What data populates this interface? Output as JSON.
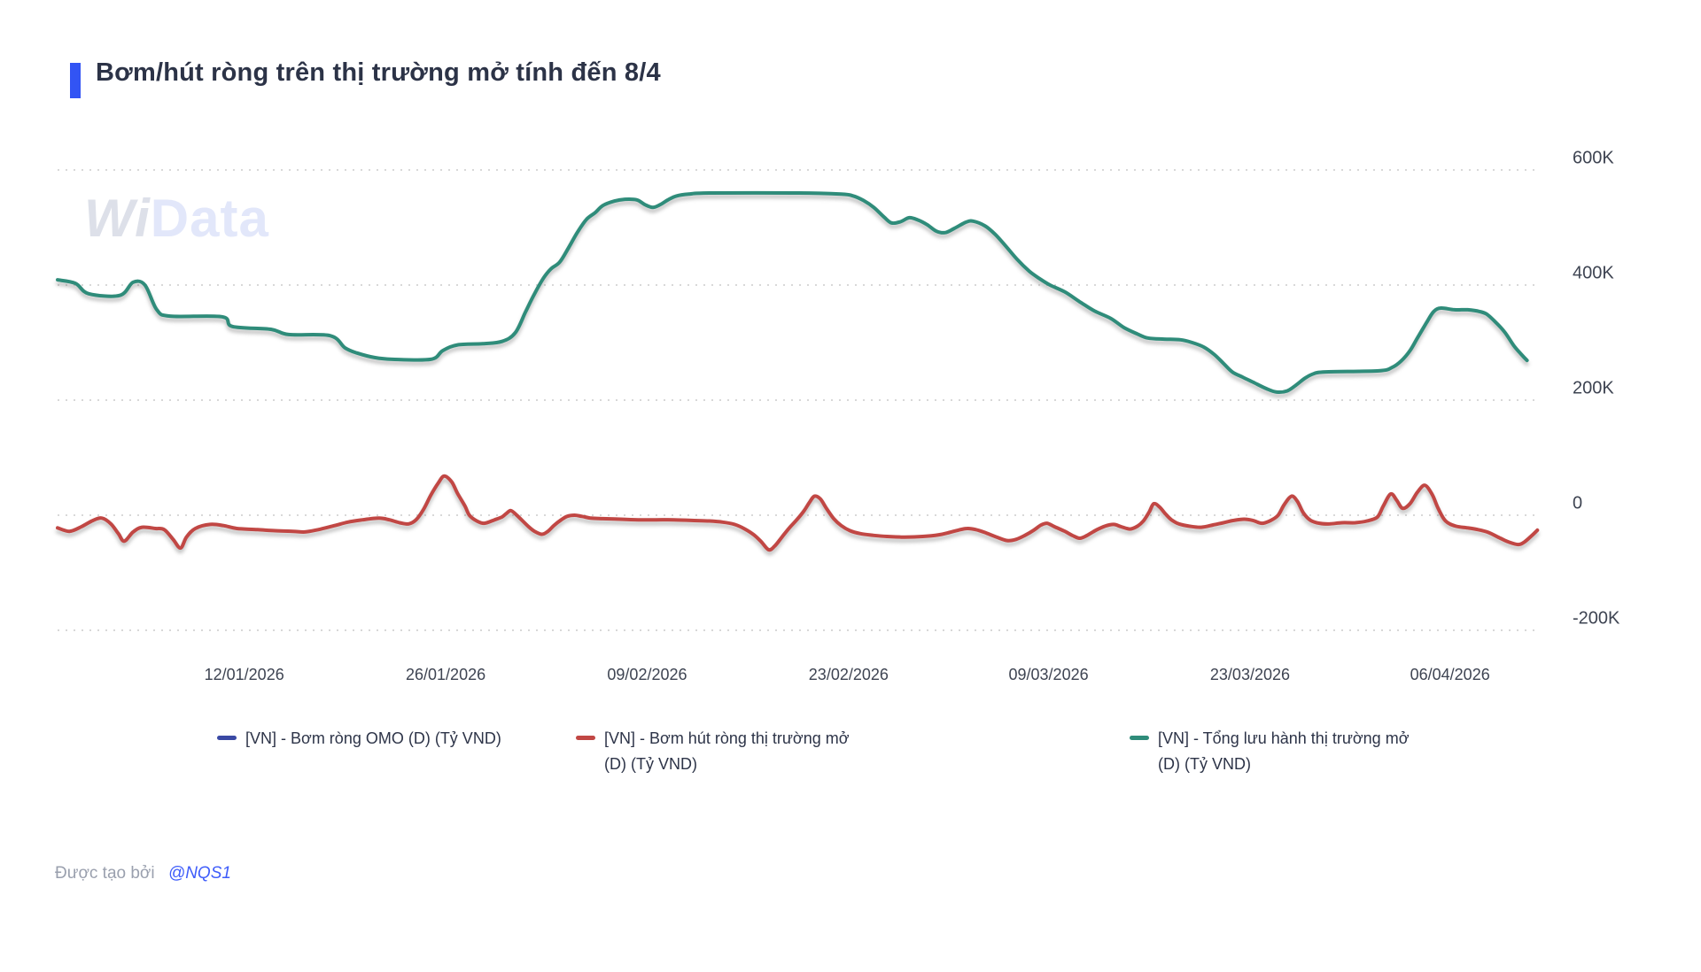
{
  "header": {
    "title": "Bơm/hút ròng trên thị trường mở tính đến 8/4",
    "accent_color": "#3254f4"
  },
  "watermark": {
    "part1": "Wi",
    "part2": "Data"
  },
  "footer": {
    "created_by": "Được tạo bởi",
    "author": "@NQS1",
    "link_color": "#3e5cfa"
  },
  "chart_data": {
    "type": "line",
    "title": "Bơm/hút ròng trên thị trường mở tính đến 8/4",
    "xlabel": "",
    "ylabel": "",
    "unit_hint": "K = nghìn (Tỷ VND)",
    "ylim": [
      -200,
      600
    ],
    "grid": {
      "color": "#d8d8d8",
      "style": "dotted",
      "horizontal_only": true
    },
    "legend_position": "bottom",
    "y_axis": {
      "ticks": [
        {
          "label": "600K",
          "value": 600
        },
        {
          "label": "400K",
          "value": 400
        },
        {
          "label": "200K",
          "value": 200
        },
        {
          "label": "0",
          "value": 0
        },
        {
          "label": "-200K",
          "value": -200
        }
      ]
    },
    "x_axis": {
      "ticks": [
        {
          "label": "12/01/2026",
          "fx": 0.126
        },
        {
          "label": "26/01/2026",
          "fx": 0.262
        },
        {
          "label": "09/02/2026",
          "fx": 0.398
        },
        {
          "label": "23/02/2026",
          "fx": 0.534
        },
        {
          "label": "09/03/2026",
          "fx": 0.669
        },
        {
          "label": "23/03/2026",
          "fx": 0.805
        },
        {
          "label": "06/04/2026",
          "fx": 0.94
        }
      ]
    },
    "series": [
      {
        "name": "[VN] - Bơm ròng OMO (D) (Tỷ VND)",
        "color": "#3a49a4",
        "visible": false,
        "points": []
      },
      {
        "name": "[VN] - Bơm hút ròng thị trường mở (D) (Tỷ VND)",
        "color": "#c14744",
        "visible": true,
        "points": [
          [
            0,
            -22
          ],
          [
            0.008,
            -28
          ],
          [
            0.016,
            -20
          ],
          [
            0.024,
            -9
          ],
          [
            0.03,
            -5
          ],
          [
            0.036,
            -15
          ],
          [
            0.041,
            -32
          ],
          [
            0.045,
            -45
          ],
          [
            0.051,
            -29
          ],
          [
            0.057,
            -21
          ],
          [
            0.066,
            -23
          ],
          [
            0.072,
            -25
          ],
          [
            0.078,
            -42
          ],
          [
            0.083,
            -57
          ],
          [
            0.087,
            -38
          ],
          [
            0.093,
            -23
          ],
          [
            0.103,
            -16
          ],
          [
            0.112,
            -18
          ],
          [
            0.121,
            -23
          ],
          [
            0.135,
            -25
          ],
          [
            0.147,
            -27
          ],
          [
            0.159,
            -28
          ],
          [
            0.167,
            -29
          ],
          [
            0.176,
            -25
          ],
          [
            0.187,
            -18
          ],
          [
            0.196,
            -12
          ],
          [
            0.206,
            -8
          ],
          [
            0.217,
            -5
          ],
          [
            0.224,
            -8
          ],
          [
            0.231,
            -13
          ],
          [
            0.237,
            -15
          ],
          [
            0.242,
            -8
          ],
          [
            0.247,
            10
          ],
          [
            0.252,
            35
          ],
          [
            0.257,
            56
          ],
          [
            0.261,
            68
          ],
          [
            0.266,
            58
          ],
          [
            0.27,
            38
          ],
          [
            0.275,
            16
          ],
          [
            0.278,
            0
          ],
          [
            0.283,
            -10
          ],
          [
            0.288,
            -14
          ],
          [
            0.295,
            -8
          ],
          [
            0.3,
            -3
          ],
          [
            0.303,
            3
          ],
          [
            0.306,
            8
          ],
          [
            0.31,
            0
          ],
          [
            0.314,
            -10
          ],
          [
            0.318,
            -20
          ],
          [
            0.322,
            -28
          ],
          [
            0.327,
            -33
          ],
          [
            0.331,
            -28
          ],
          [
            0.335,
            -18
          ],
          [
            0.34,
            -8
          ],
          [
            0.344,
            -2
          ],
          [
            0.349,
            0
          ],
          [
            0.354,
            -2
          ],
          [
            0.36,
            -5
          ],
          [
            0.368,
            -6
          ],
          [
            0.38,
            -7
          ],
          [
            0.392,
            -8
          ],
          [
            0.404,
            -8
          ],
          [
            0.416,
            -8
          ],
          [
            0.428,
            -9
          ],
          [
            0.44,
            -10
          ],
          [
            0.449,
            -12
          ],
          [
            0.457,
            -16
          ],
          [
            0.464,
            -24
          ],
          [
            0.47,
            -34
          ],
          [
            0.475,
            -46
          ],
          [
            0.48,
            -60
          ],
          [
            0.484,
            -54
          ],
          [
            0.489,
            -38
          ],
          [
            0.494,
            -22
          ],
          [
            0.499,
            -8
          ],
          [
            0.504,
            8
          ],
          [
            0.508,
            24
          ],
          [
            0.511,
            33
          ],
          [
            0.515,
            28
          ],
          [
            0.519,
            12
          ],
          [
            0.524,
            -6
          ],
          [
            0.529,
            -18
          ],
          [
            0.535,
            -27
          ],
          [
            0.542,
            -32
          ],
          [
            0.551,
            -35
          ],
          [
            0.56,
            -37
          ],
          [
            0.572,
            -38
          ],
          [
            0.584,
            -37
          ],
          [
            0.595,
            -34
          ],
          [
            0.602,
            -30
          ],
          [
            0.608,
            -26
          ],
          [
            0.614,
            -23
          ],
          [
            0.62,
            -25
          ],
          [
            0.627,
            -31
          ],
          [
            0.634,
            -38
          ],
          [
            0.641,
            -44
          ],
          [
            0.647,
            -42
          ],
          [
            0.653,
            -35
          ],
          [
            0.659,
            -26
          ],
          [
            0.664,
            -17
          ],
          [
            0.668,
            -14
          ],
          [
            0.673,
            -20
          ],
          [
            0.68,
            -28
          ],
          [
            0.685,
            -35
          ],
          [
            0.69,
            -40
          ],
          [
            0.695,
            -35
          ],
          [
            0.701,
            -26
          ],
          [
            0.707,
            -19
          ],
          [
            0.713,
            -16
          ],
          [
            0.718,
            -20
          ],
          [
            0.724,
            -24
          ],
          [
            0.729,
            -19
          ],
          [
            0.733,
            -10
          ],
          [
            0.737,
            6
          ],
          [
            0.74,
            20
          ],
          [
            0.744,
            14
          ],
          [
            0.748,
            2
          ],
          [
            0.752,
            -8
          ],
          [
            0.757,
            -15
          ],
          [
            0.764,
            -19
          ],
          [
            0.772,
            -21
          ],
          [
            0.78,
            -17
          ],
          [
            0.787,
            -13
          ],
          [
            0.794,
            -9
          ],
          [
            0.801,
            -7
          ],
          [
            0.807,
            -9
          ],
          [
            0.813,
            -14
          ],
          [
            0.819,
            -9
          ],
          [
            0.824,
            0
          ],
          [
            0.828,
            18
          ],
          [
            0.833,
            33
          ],
          [
            0.837,
            24
          ],
          [
            0.841,
            4
          ],
          [
            0.846,
            -9
          ],
          [
            0.852,
            -14
          ],
          [
            0.859,
            -15
          ],
          [
            0.867,
            -13
          ],
          [
            0.876,
            -13
          ],
          [
            0.884,
            -10
          ],
          [
            0.891,
            -3
          ],
          [
            0.895,
            16
          ],
          [
            0.9,
            37
          ],
          [
            0.904,
            26
          ],
          [
            0.908,
            12
          ],
          [
            0.913,
            20
          ],
          [
            0.918,
            40
          ],
          [
            0.923,
            52
          ],
          [
            0.928,
            36
          ],
          [
            0.932,
            12
          ],
          [
            0.937,
            -10
          ],
          [
            0.944,
            -19
          ],
          [
            0.952,
            -22
          ],
          [
            0.959,
            -25
          ],
          [
            0.966,
            -30
          ],
          [
            0.974,
            -40
          ],
          [
            0.98,
            -47
          ],
          [
            0.986,
            -51
          ],
          [
            0.99,
            -47
          ],
          [
            0.995,
            -36
          ],
          [
            0.999,
            -26
          ]
        ]
      },
      {
        "name": "[VN] - Tổng lưu hành thị trường mở (D) (Tỷ VND)",
        "color": "#2f8c7a",
        "visible": true,
        "points": [
          [
            0,
            409
          ],
          [
            0.012,
            403
          ],
          [
            0.021,
            385
          ],
          [
            0.042,
            382
          ],
          [
            0.051,
            405
          ],
          [
            0.059,
            400
          ],
          [
            0.067,
            357
          ],
          [
            0.076,
            346
          ],
          [
            0.111,
            345
          ],
          [
            0.118,
            328
          ],
          [
            0.144,
            323
          ],
          [
            0.156,
            314
          ],
          [
            0.184,
            312
          ],
          [
            0.194,
            291
          ],
          [
            0.202,
            282
          ],
          [
            0.214,
            274
          ],
          [
            0.226,
            271
          ],
          [
            0.252,
            271
          ],
          [
            0.26,
            286
          ],
          [
            0.27,
            296
          ],
          [
            0.287,
            298
          ],
          [
            0.3,
            302
          ],
          [
            0.309,
            317
          ],
          [
            0.316,
            354
          ],
          [
            0.322,
            385
          ],
          [
            0.328,
            412
          ],
          [
            0.333,
            428
          ],
          [
            0.339,
            440
          ],
          [
            0.345,
            465
          ],
          [
            0.351,
            492
          ],
          [
            0.357,
            514
          ],
          [
            0.363,
            526
          ],
          [
            0.368,
            538
          ],
          [
            0.376,
            546
          ],
          [
            0.383,
            549
          ],
          [
            0.391,
            548
          ],
          [
            0.397,
            539
          ],
          [
            0.402,
            535
          ],
          [
            0.407,
            540
          ],
          [
            0.412,
            548
          ],
          [
            0.418,
            555
          ],
          [
            0.426,
            558
          ],
          [
            0.44,
            560
          ],
          [
            0.5,
            560
          ],
          [
            0.529,
            558
          ],
          [
            0.537,
            555
          ],
          [
            0.544,
            547
          ],
          [
            0.551,
            535
          ],
          [
            0.558,
            518
          ],
          [
            0.563,
            508
          ],
          [
            0.569,
            510
          ],
          [
            0.575,
            517
          ],
          [
            0.581,
            513
          ],
          [
            0.587,
            505
          ],
          [
            0.593,
            494
          ],
          [
            0.599,
            491
          ],
          [
            0.605,
            498
          ],
          [
            0.613,
            509
          ],
          [
            0.618,
            511
          ],
          [
            0.626,
            503
          ],
          [
            0.633,
            488
          ],
          [
            0.64,
            468
          ],
          [
            0.648,
            444
          ],
          [
            0.656,
            424
          ],
          [
            0.663,
            411
          ],
          [
            0.67,
            400
          ],
          [
            0.68,
            388
          ],
          [
            0.69,
            371
          ],
          [
            0.7,
            355
          ],
          [
            0.711,
            342
          ],
          [
            0.72,
            326
          ],
          [
            0.729,
            315
          ],
          [
            0.736,
            308
          ],
          [
            0.747,
            306
          ],
          [
            0.758,
            305
          ],
          [
            0.766,
            300
          ],
          [
            0.774,
            292
          ],
          [
            0.781,
            279
          ],
          [
            0.787,
            264
          ],
          [
            0.793,
            249
          ],
          [
            0.8,
            240
          ],
          [
            0.808,
            230
          ],
          [
            0.816,
            220
          ],
          [
            0.823,
            214
          ],
          [
            0.83,
            216
          ],
          [
            0.836,
            226
          ],
          [
            0.842,
            238
          ],
          [
            0.848,
            246
          ],
          [
            0.856,
            249
          ],
          [
            0.892,
            251
          ],
          [
            0.901,
            257
          ],
          [
            0.907,
            268
          ],
          [
            0.913,
            286
          ],
          [
            0.918,
            308
          ],
          [
            0.924,
            334
          ],
          [
            0.929,
            354
          ],
          [
            0.934,
            360
          ],
          [
            0.943,
            357
          ],
          [
            0.952,
            357
          ],
          [
            0.96,
            354
          ],
          [
            0.965,
            349
          ],
          [
            0.971,
            335
          ],
          [
            0.977,
            318
          ],
          [
            0.983,
            295
          ],
          [
            0.988,
            280
          ],
          [
            0.992,
            269
          ]
        ]
      }
    ]
  }
}
